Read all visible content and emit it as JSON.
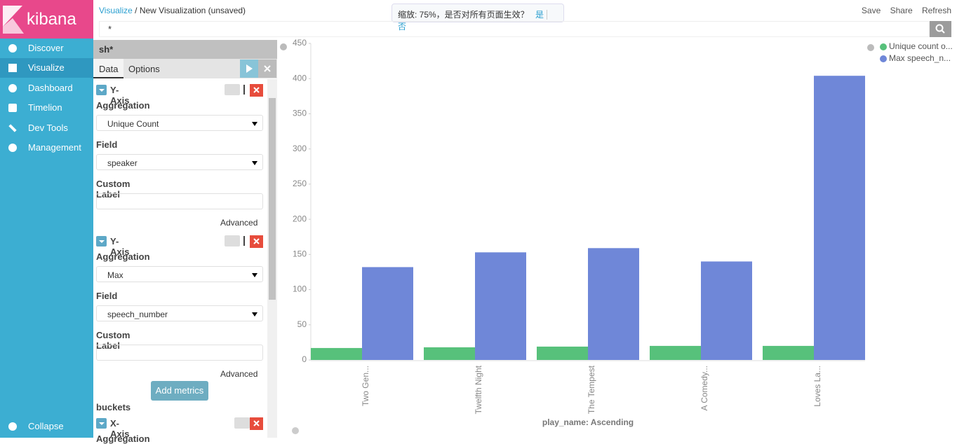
{
  "app": {
    "logo": "kibana",
    "nav": [
      "Discover",
      "Visualize",
      "Dashboard",
      "Timelion",
      "Dev Tools",
      "Management"
    ],
    "collapse": "Collapse"
  },
  "topbar": {
    "breadcrumb": [
      "Visualize",
      "/",
      "New Visualization (unsaved)"
    ],
    "zoom_prompt": "缩放: 75%，是否对所有页面生效？",
    "zoom_yes": "是",
    "zoom_no": "否",
    "actions": [
      "Save",
      "Share",
      "Refresh"
    ]
  },
  "search": {
    "query": "*"
  },
  "editor": {
    "index": "sh*",
    "tabs": [
      "Data",
      "Options"
    ],
    "metrics": [
      {
        "title": "Y-Axis",
        "aggregation_label": "Aggregation",
        "aggregation": "Unique Count",
        "field_label": "Field",
        "field": "speaker",
        "custom_label": "Custom Label",
        "advanced": "Advanced"
      },
      {
        "title": "Y-Axis",
        "aggregation_label": "Aggregation",
        "aggregation": "Max",
        "field_label": "Field",
        "field": "speech_number",
        "custom_label": "Custom Label",
        "advanced": "Advanced"
      }
    ],
    "add_metrics": "Add metrics",
    "buckets": "buckets",
    "bucket": {
      "title": "X-Axis",
      "aggregation_label": "Aggregation"
    }
  },
  "chart_data": {
    "type": "bar",
    "categories": [
      "Two Gen...",
      "Twelfth Night",
      "The Tempest",
      "A Comedy...",
      "Loves La..."
    ],
    "series": [
      {
        "name": "Unique count o...",
        "color": "#57c17b",
        "values": [
          17,
          18,
          19,
          20,
          20
        ]
      },
      {
        "name": "Max speech_n...",
        "color": "#6f87d8",
        "values": [
          132,
          153,
          159,
          140,
          404
        ]
      }
    ],
    "ylim": [
      0,
      450
    ],
    "yticks": [
      0,
      50,
      100,
      150,
      200,
      250,
      300,
      350,
      400,
      450
    ],
    "x_label": "play_name: Ascending",
    "legend": "top-right"
  }
}
